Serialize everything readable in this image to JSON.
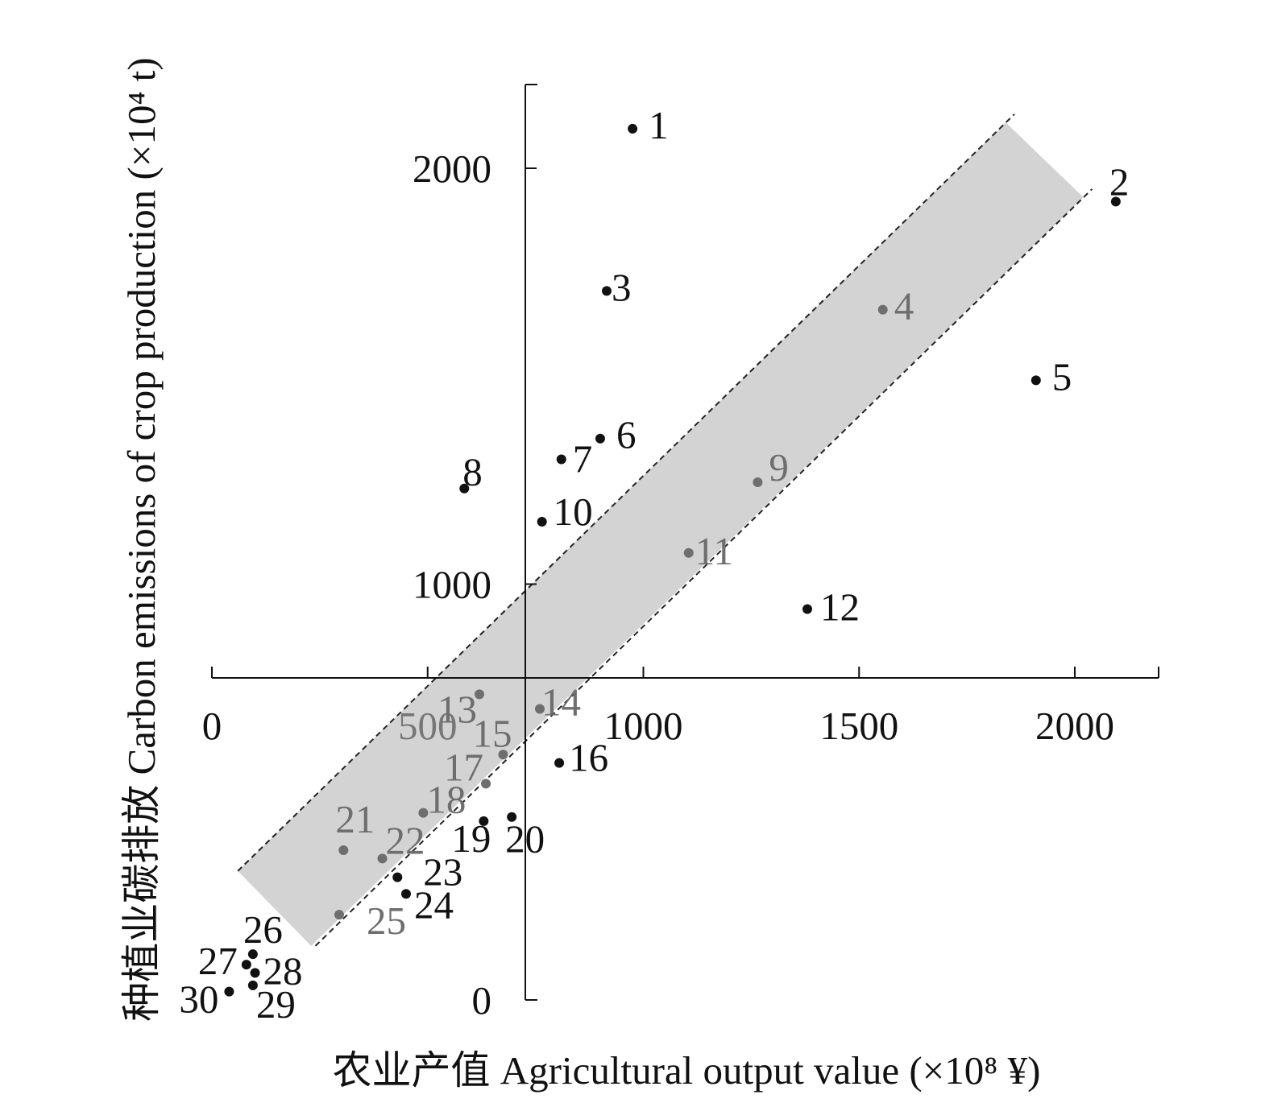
{
  "chart_data": {
    "type": "scatter",
    "xlabel": "农业产值 Agricultural output value (×10⁸ ¥)",
    "ylabel": "种植业碳排放 Carbon emissions of crop production (×10⁴ t)",
    "x_ticks": [
      0,
      500,
      1000,
      1500,
      2000
    ],
    "y_ticks": [
      0,
      1000,
      2000
    ],
    "xlim": [
      0,
      2200
    ],
    "ylim": [
      0,
      2200
    ],
    "grid": false,
    "legend": "none",
    "band_color": "#d3d3d3",
    "inside_point_color": "#6e6e6e",
    "outside_point_color": "#111111",
    "band": {
      "style": "shaded band bounded by two dashed parallel lines",
      "upper_line": [
        [
          60,
          310
        ],
        [
          1860,
          2130
        ]
      ],
      "lower_line": [
        [
          240,
          130
        ],
        [
          2040,
          1950
        ]
      ],
      "shade_polygon": [
        [
          60,
          310
        ],
        [
          1840,
          2110
        ],
        [
          2020,
          1930
        ],
        [
          230,
          130
        ]
      ]
    },
    "points": [
      {
        "label": "1",
        "x": 975,
        "y": 2095,
        "in_band": false
      },
      {
        "label": "2",
        "x": 2095,
        "y": 1920,
        "in_band": false
      },
      {
        "label": "3",
        "x": 915,
        "y": 1705,
        "in_band": false
      },
      {
        "label": "4",
        "x": 1555,
        "y": 1660,
        "in_band": true
      },
      {
        "label": "5",
        "x": 1910,
        "y": 1490,
        "in_band": false
      },
      {
        "label": "6",
        "x": 900,
        "y": 1350,
        "in_band": false
      },
      {
        "label": "7",
        "x": 810,
        "y": 1300,
        "in_band": false
      },
      {
        "label": "8",
        "x": 585,
        "y": 1230,
        "in_band": false
      },
      {
        "label": "9",
        "x": 1265,
        "y": 1245,
        "in_band": true
      },
      {
        "label": "10",
        "x": 765,
        "y": 1150,
        "in_band": false
      },
      {
        "label": "11",
        "x": 1105,
        "y": 1075,
        "in_band": true
      },
      {
        "label": "12",
        "x": 1380,
        "y": 940,
        "in_band": false
      },
      {
        "label": "13",
        "x": 620,
        "y": 735,
        "in_band": true
      },
      {
        "label": "14",
        "x": 760,
        "y": 700,
        "in_band": true
      },
      {
        "label": "15",
        "x": 675,
        "y": 590,
        "in_band": true
      },
      {
        "label": "16",
        "x": 805,
        "y": 570,
        "in_band": false
      },
      {
        "label": "17",
        "x": 635,
        "y": 520,
        "in_band": true
      },
      {
        "label": "18",
        "x": 490,
        "y": 450,
        "in_band": true
      },
      {
        "label": "19",
        "x": 630,
        "y": 430,
        "in_band": false
      },
      {
        "label": "20",
        "x": 695,
        "y": 440,
        "in_band": false
      },
      {
        "label": "21",
        "x": 305,
        "y": 360,
        "in_band": true
      },
      {
        "label": "22",
        "x": 395,
        "y": 340,
        "in_band": true
      },
      {
        "label": "23",
        "x": 430,
        "y": 295,
        "in_band": false
      },
      {
        "label": "24",
        "x": 450,
        "y": 255,
        "in_band": false
      },
      {
        "label": "25",
        "x": 295,
        "y": 205,
        "in_band": true
      },
      {
        "label": "26",
        "x": 95,
        "y": 110,
        "in_band": false
      },
      {
        "label": "27",
        "x": 80,
        "y": 85,
        "in_band": false
      },
      {
        "label": "28",
        "x": 100,
        "y": 65,
        "in_band": false
      },
      {
        "label": "29",
        "x": 95,
        "y": 35,
        "in_band": false
      },
      {
        "label": "30",
        "x": 40,
        "y": 20,
        "in_band": false
      }
    ]
  }
}
